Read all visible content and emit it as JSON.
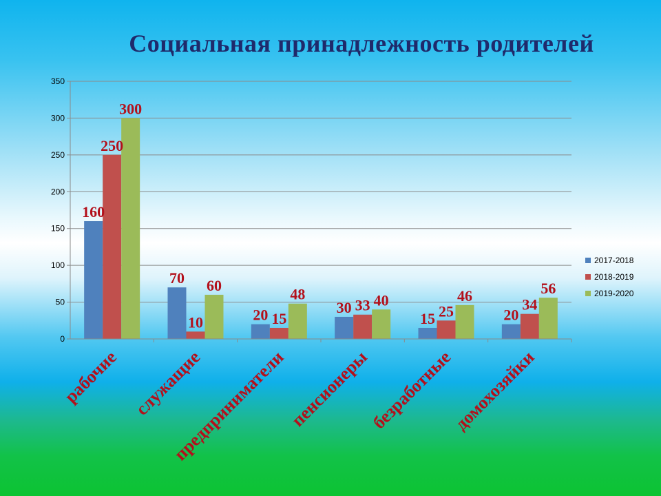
{
  "chart_data": {
    "type": "bar",
    "title": "Социальная принадлежность родителей",
    "categories": [
      "рабочие",
      "служащие",
      "предприниматели",
      "пенсионеры",
      "безработные",
      "домохозяйки"
    ],
    "series": [
      {
        "name": "2017-2018",
        "color": "#4f81bd",
        "values": [
          160,
          70,
          20,
          30,
          15,
          20
        ]
      },
      {
        "name": "2018-2019",
        "color": "#c0504d",
        "values": [
          250,
          10,
          15,
          33,
          25,
          34
        ]
      },
      {
        "name": "2019-2020",
        "color": "#9bbb59",
        "values": [
          300,
          60,
          48,
          40,
          46,
          56
        ]
      }
    ],
    "ylim": [
      0,
      350
    ],
    "yticks": [
      0,
      50,
      100,
      150,
      200,
      250,
      300,
      350
    ],
    "grid": true,
    "legend": "right"
  }
}
